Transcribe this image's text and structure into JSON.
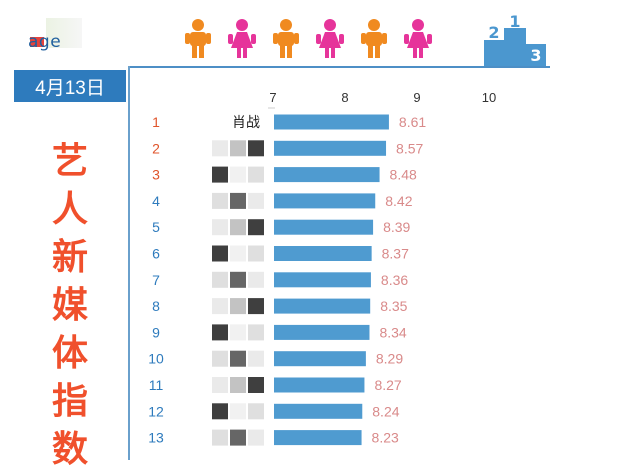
{
  "date": "4月13日",
  "side_title": [
    "艺",
    "人",
    "新",
    "媒",
    "体",
    "指",
    "数"
  ],
  "brand": "age",
  "colors": {
    "bar": "#4f9bd0",
    "value_label": "#d98a8a",
    "rank_top": "#e0552c",
    "rank_other": "#2e7bbd",
    "person_orange": "#f08a20",
    "person_pink": "#e6349a",
    "podium": "#4b97cf",
    "accent": "#2e7bbd"
  },
  "people_icons": [
    "male-orange",
    "female-pink",
    "male-orange",
    "female-pink",
    "male-orange",
    "female-pink"
  ],
  "podium_icon": "podium-icon",
  "chart_data": {
    "type": "bar",
    "orientation": "horizontal",
    "xlim": [
      7,
      10
    ],
    "xticks": [
      7,
      8,
      9,
      10
    ],
    "ranks": [
      1,
      2,
      3,
      4,
      5,
      6,
      7,
      8,
      9,
      10,
      11,
      12,
      13
    ],
    "categories": [
      "肖战",
      "",
      "",
      "",
      "",
      "",
      "",
      "",
      "",
      "",
      "",
      "",
      ""
    ],
    "values": [
      8.61,
      8.57,
      8.48,
      8.42,
      8.39,
      8.37,
      8.36,
      8.35,
      8.34,
      8.29,
      8.27,
      8.24,
      8.23
    ],
    "value_labels": [
      "8.61",
      "8.57",
      "8.48",
      "8.42",
      "8.39",
      "8.37",
      "8.36",
      "8.35",
      "8.34",
      "8.29",
      "8.27",
      "8.24",
      "8.23"
    ],
    "grid": false
  }
}
